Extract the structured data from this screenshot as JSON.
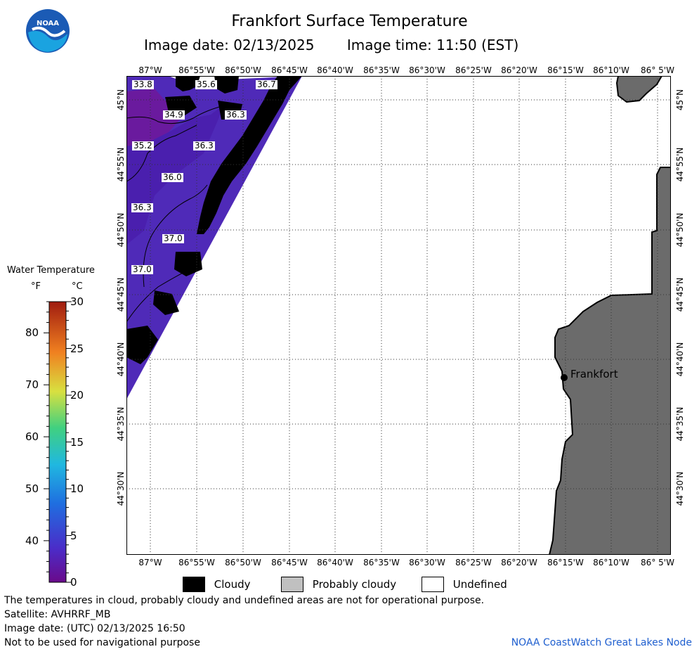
{
  "header": {
    "title": "Frankfort Surface Temperature",
    "image_date": "Image date: 02/13/2025",
    "image_time": "Image time: 11:50 (EST)"
  },
  "logo": {
    "name": "noaa-logo",
    "text": "NOAA"
  },
  "axes": {
    "longitude_labels": [
      "87°W",
      "86°55'W",
      "86°50'W",
      "86°45'W",
      "86°40'W",
      "86°35'W",
      "86°30'W",
      "86°25'W",
      "86°20'W",
      "86°15'W",
      "86°10'W",
      "86° 5'W"
    ],
    "latitude_labels": [
      "45°N",
      "44°55'N",
      "44°50'N",
      "44°45'N",
      "44°40'N",
      "44°35'N",
      "44°30'N"
    ]
  },
  "map": {
    "town": "Frankfort",
    "contour_labels": [
      "33.8",
      "35.6",
      "36.7",
      "34.9",
      "36.3",
      "35.2",
      "36.3",
      "36.0",
      "36.3",
      "37.0",
      "37.0"
    ],
    "colors": {
      "water": "#4f2ab8",
      "cloud": "#000000",
      "land": "#6b6b6b",
      "undefined": "#ffffff"
    }
  },
  "colorbar": {
    "title": "Water Temperature",
    "unit_f": "°F",
    "unit_c": "°C",
    "f_ticks": [
      "80",
      "70",
      "60",
      "50",
      "40"
    ],
    "c_ticks": [
      "30",
      "25",
      "20",
      "15",
      "10",
      "5",
      "0"
    ],
    "f_range": [
      32,
      86
    ],
    "c_range": [
      0,
      30
    ]
  },
  "legend": {
    "cloudy": "Cloudy",
    "probably_cloudy": "Probably cloudy",
    "undefined": "Undefined"
  },
  "footer": {
    "line1": "The temperatures in cloud, probably cloudy and undefined areas are not for operational purpose.",
    "line2": "Satellite: AVHRRF_MB",
    "line3": "Image date: (UTC) 02/13/2025  16:50",
    "line4": "Not to be used for navigational purpose",
    "node": "NOAA CoastWatch Great Lakes Node"
  }
}
